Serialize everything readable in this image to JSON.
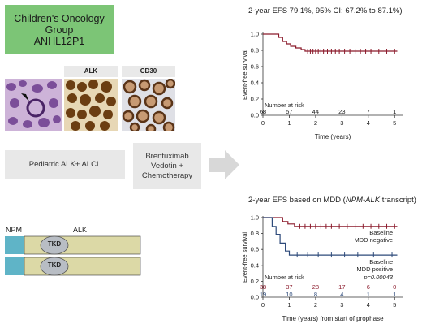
{
  "header_box": {
    "line1": "Children's Oncology",
    "line2": "Group",
    "line3": "ANHL12P1"
  },
  "stain_labels": {
    "alk": "ALK",
    "cd30": "CD30"
  },
  "boxes": {
    "disease": "Pediatric ALK+ ALCL",
    "treatment_line1": "Brentuximab",
    "treatment_line2": "Vedotin +",
    "treatment_line3": "Chemotherapy"
  },
  "gene_diagram": {
    "npm": "NPM",
    "alk": "ALK",
    "tkd": "TKD"
  },
  "colors": {
    "km_line": "#8b1a2b",
    "mdd_positive": "#2d4a7a",
    "green": "#7cc576",
    "bar": "#dcd9a6",
    "tkd": "#b8bdc4",
    "npm": "#5fb4c7"
  },
  "chart_data": [
    {
      "type": "line",
      "title": "2-year EFS 79.1%, 95% CI: 67.2% to 87.1%)",
      "xlabel": "Time (years)",
      "ylabel": "Event-free survival",
      "xlim": [
        0,
        5.3
      ],
      "ylim": [
        0.0,
        1.0
      ],
      "x_ticks": [
        "0",
        "1",
        "2",
        "3",
        "4",
        "5"
      ],
      "y_ticks": [
        "0.0",
        "0.2",
        "0.4",
        "0.6",
        "0.8",
        "1.0"
      ],
      "risk_title": "Number at risk",
      "risk_values": [
        "68",
        "57",
        "44",
        "23",
        "7",
        "1"
      ],
      "series": [
        {
          "x": [
            0,
            0.6,
            0.6,
            0.75,
            0.75,
            0.9,
            0.9,
            1.05,
            1.05,
            1.25,
            1.25,
            1.45,
            1.45,
            1.6,
            1.6,
            5.1
          ],
          "y": [
            1.0,
            1.0,
            0.96,
            0.96,
            0.91,
            0.91,
            0.88,
            0.88,
            0.85,
            0.85,
            0.83,
            0.83,
            0.81,
            0.81,
            0.79,
            0.79
          ]
        }
      ],
      "censor_x": [
        1.7,
        1.8,
        1.9,
        2.0,
        2.1,
        2.2,
        2.3,
        2.45,
        2.6,
        2.75,
        2.9,
        3.1,
        3.3,
        3.5,
        3.7,
        3.9,
        4.1,
        4.4,
        4.7,
        5.0
      ]
    },
    {
      "type": "line",
      "title_prefix": "2-year EFS based on MDD (",
      "title_italic": "NPM-ALK",
      "title_suffix": " transcript)",
      "xlabel": "Time (years) from start of prophase",
      "ylabel": "Event-free survival",
      "xlim": [
        0,
        5.3
      ],
      "ylim": [
        0.0,
        1.0
      ],
      "x_ticks": [
        "0",
        "1",
        "2",
        "3",
        "4",
        "5"
      ],
      "y_ticks": [
        "0.0",
        "0.2",
        "0.4",
        "0.6",
        "0.8",
        "1.0"
      ],
      "risk_title": "Number at risk",
      "risk_values_negative": [
        "38",
        "37",
        "28",
        "17",
        "6",
        "0"
      ],
      "risk_values_positive": [
        "19",
        "10",
        "8",
        "4",
        "1",
        "1"
      ],
      "legend_negative": [
        "Baseline",
        "MDD negative"
      ],
      "legend_positive": [
        "Baseline",
        "MDD positive"
      ],
      "p_value": "p=0.00043",
      "series": [
        {
          "name": "Baseline MDD negative",
          "x": [
            0,
            0.75,
            0.75,
            0.95,
            0.95,
            1.2,
            1.2,
            5.1
          ],
          "y": [
            1.0,
            1.0,
            0.95,
            0.95,
            0.92,
            0.92,
            0.89,
            0.89
          ],
          "censor_x": [
            1.4,
            1.6,
            1.8,
            2.0,
            2.2,
            2.4,
            2.6,
            2.9,
            3.2,
            3.5,
            3.8,
            4.1,
            4.4,
            4.7,
            5.0
          ]
        },
        {
          "name": "Baseline MDD positive",
          "x": [
            0,
            0.35,
            0.35,
            0.5,
            0.5,
            0.65,
            0.65,
            0.85,
            0.85,
            1.0,
            1.0,
            5.1
          ],
          "y": [
            1.0,
            1.0,
            0.89,
            0.89,
            0.79,
            0.79,
            0.68,
            0.68,
            0.58,
            0.58,
            0.53,
            0.53
          ],
          "censor_x": [
            1.3,
            1.7,
            2.1,
            2.6,
            3.1,
            3.6,
            4.2,
            4.9
          ]
        }
      ]
    }
  ]
}
